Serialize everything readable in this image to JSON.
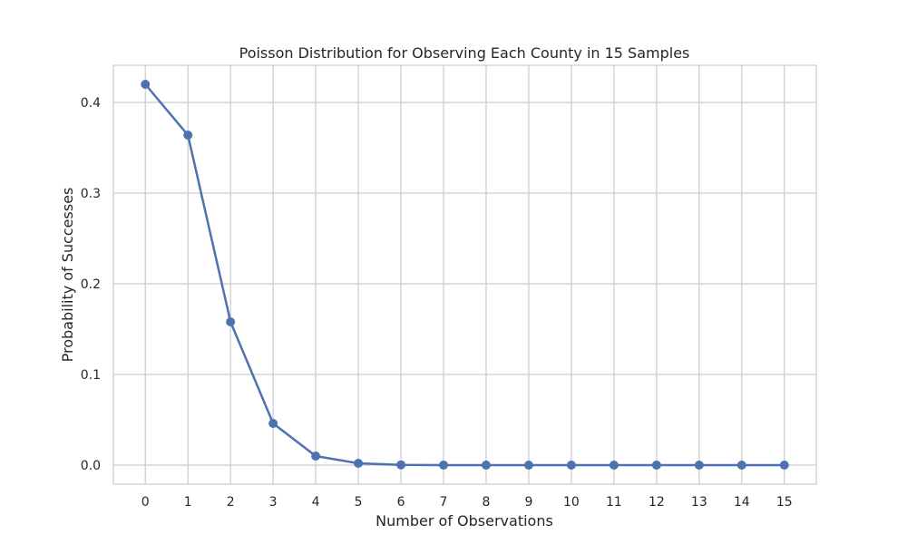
{
  "chart_data": {
    "type": "line",
    "title": "Poisson Distribution for Observing Each County in 15 Samples",
    "xlabel": "Number of Observations",
    "ylabel": "Probability of Successes",
    "x": [
      0,
      1,
      2,
      3,
      4,
      5,
      6,
      7,
      8,
      9,
      10,
      11,
      12,
      13,
      14,
      15
    ],
    "series": [
      {
        "values": [
          0.42,
          0.364,
          0.158,
          0.046,
          0.01,
          0.002,
          0.0003,
          4e-05,
          4e-06,
          4e-07,
          0.0,
          0.0,
          0.0,
          0.0,
          0.0,
          0.0
        ],
        "color": "#4c72b0",
        "marker": "circle"
      }
    ],
    "xticks": [
      "0",
      "1",
      "2",
      "3",
      "4",
      "5",
      "6",
      "7",
      "8",
      "9",
      "10",
      "11",
      "12",
      "13",
      "14",
      "15"
    ],
    "yticks": [
      0.0,
      0.1,
      0.2,
      0.3,
      0.4
    ],
    "ytick_labels": [
      "0.0",
      "0.1",
      "0.2",
      "0.3",
      "0.4"
    ],
    "xlim": [
      -0.75,
      15.75
    ],
    "ylim": [
      -0.021,
      0.441
    ],
    "grid": true,
    "grid_color": "#cccccc",
    "background": "#ffffff"
  }
}
